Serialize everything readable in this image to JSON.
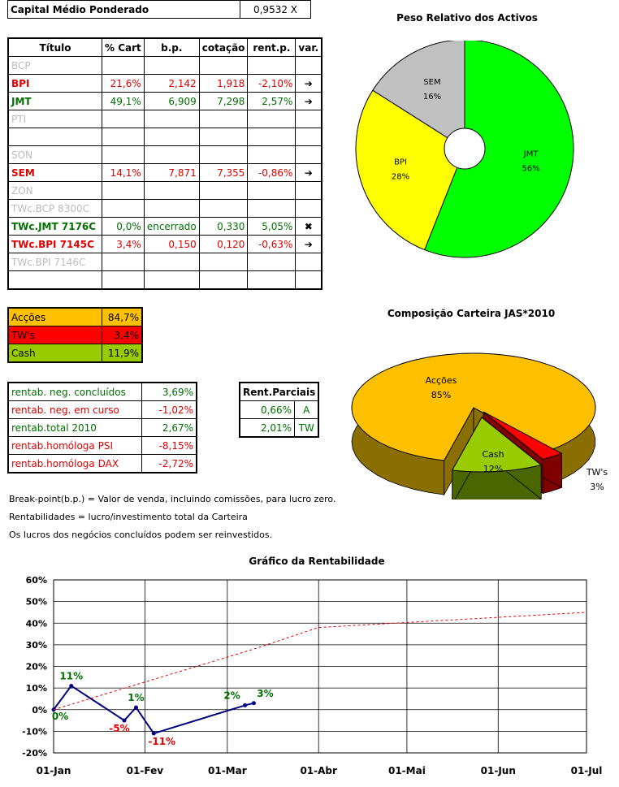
{
  "capital": {
    "label": "Capital Médio Ponderado",
    "value": "0,9532 X"
  },
  "portfolio_table": {
    "headers": [
      "Título",
      "% Cart",
      "b.p.",
      "cotação",
      "rent.p.",
      "var."
    ],
    "rows": [
      {
        "name": "BCP",
        "pct": "",
        "bp": "",
        "cot": "",
        "rent": "",
        "var": "",
        "color": "grey"
      },
      {
        "name": "BPI",
        "pct": "21,6%",
        "bp": "2,142",
        "cot": "1,918",
        "rent": "-2,10%",
        "var": "➔",
        "color": "red"
      },
      {
        "name": "JMT",
        "pct": "49,1%",
        "bp": "6,909",
        "cot": "7,298",
        "rent": "2,57%",
        "var": "➔",
        "color": "green"
      },
      {
        "name": "PTI",
        "pct": "",
        "bp": "",
        "cot": "",
        "rent": "",
        "var": "",
        "color": "grey"
      },
      {
        "name": "",
        "pct": "",
        "bp": "",
        "cot": "",
        "rent": "",
        "var": "",
        "color": "grey"
      },
      {
        "name": "SON",
        "pct": "",
        "bp": "",
        "cot": "",
        "rent": "",
        "var": "",
        "color": "grey"
      },
      {
        "name": "SEM",
        "pct": "14,1%",
        "bp": "7,871",
        "cot": "7,355",
        "rent": "-0,86%",
        "var": "➔",
        "color": "red"
      },
      {
        "name": "ZON",
        "pct": "",
        "bp": "",
        "cot": "",
        "rent": "",
        "var": "",
        "color": "grey"
      },
      {
        "name": "TWc.BCP 8300C",
        "pct": "",
        "bp": "",
        "cot": "",
        "rent": "",
        "var": "",
        "color": "grey"
      },
      {
        "name": "TWc.JMT 7176C",
        "pct": "0,0%",
        "bp": "encerrado",
        "cot": "0,330",
        "rent": "5,05%",
        "var": "✖",
        "color": "green"
      },
      {
        "name": "TWc.BPI 7145C",
        "pct": "3,4%",
        "bp": "0,150",
        "cot": "0,120",
        "rent": "-0,63%",
        "var": "➔",
        "color": "red"
      },
      {
        "name": "TWc.BPI 7146C",
        "pct": "",
        "bp": "",
        "cot": "",
        "rent": "",
        "var": "",
        "color": "grey"
      },
      {
        "name": "",
        "pct": "",
        "bp": "",
        "cot": "",
        "rent": "",
        "var": "",
        "color": "grey"
      }
    ]
  },
  "composition": [
    {
      "label": "Acções",
      "value": "84,7%",
      "bg": "#ffc000"
    },
    {
      "label": "TW's",
      "value": "3,4%",
      "bg": "#ff0000"
    },
    {
      "label": "Cash",
      "value": "11,9%",
      "bg": "#99cc00"
    }
  ],
  "returns": [
    {
      "label": "rentab. neg. concluídos",
      "value": "3,69%",
      "color": "green"
    },
    {
      "label": "rentab. neg. em curso",
      "value": "-1,02%",
      "color": "red"
    },
    {
      "label": "rentab.total 2010",
      "value": "2,67%",
      "color": "green"
    },
    {
      "label": "rentab.homóloga PSI",
      "value": "-8,15%",
      "color": "red"
    },
    {
      "label": "rentab.homóloga DAX",
      "value": "-2,72%",
      "color": "red"
    }
  ],
  "partial": {
    "header": "Rent.Parciais",
    "rows": [
      {
        "value": "0,66%",
        "tag": "A"
      },
      {
        "value": "2,01%",
        "tag": "TW"
      }
    ]
  },
  "notes": [
    "Break-point(b.p.) = Valor de venda, incluindo comissões, para lucro zero.",
    "Rentabilidades = lucro/investimento total da Carteira",
    "Os lucros dos negócios concluídos podem ser reinvestidos."
  ],
  "chart_data": [
    {
      "type": "pie",
      "title": "Peso Relativo dos Activos",
      "categories": [
        "JMT",
        "BPI",
        "SEM"
      ],
      "values": [
        56,
        28,
        16
      ],
      "labels": [
        "56%",
        "28%",
        "16%"
      ],
      "colors": [
        "#00ff00",
        "#ffff00",
        "#c0c0c0"
      ],
      "donut": true
    },
    {
      "type": "pie",
      "title": "Composição Carteira JAS*2010",
      "categories": [
        "Acções",
        "TW's",
        "Cash"
      ],
      "values": [
        85,
        3,
        12
      ],
      "labels": [
        "85%",
        "3%",
        "12%"
      ],
      "colors": [
        "#ffc000",
        "#ff0000",
        "#99cc00"
      ],
      "three_d": true
    },
    {
      "type": "line",
      "title": "Gráfico da Rentabilidade",
      "x_ticks": [
        "01-Jan",
        "01-Fev",
        "01-Mar",
        "01-Abr",
        "01-Mai",
        "01-Jun",
        "01-Jul"
      ],
      "y_ticks": [
        "-20%",
        "-10%",
        "0%",
        "10%",
        "20%",
        "30%",
        "40%",
        "50%",
        "60%"
      ],
      "ylim": [
        -20,
        60
      ],
      "grid": true,
      "series": [
        {
          "style": "solid",
          "color": "#000080",
          "x": [
            "2010-01-01",
            "2010-01-07",
            "2010-01-25",
            "2010-01-29",
            "2010-02-04",
            "2010-03-07",
            "2010-03-10"
          ],
          "y": [
            0,
            11,
            -5,
            1,
            -11,
            2,
            3
          ],
          "point_labels": [
            "0%",
            "11%",
            "-5%",
            "1%",
            "-11%",
            "2%",
            "3%"
          ],
          "label_colors": [
            "green",
            "green",
            "red",
            "green",
            "red",
            "green",
            "green"
          ]
        },
        {
          "style": "dotted",
          "color": "#e00000",
          "x": [
            "2010-01-01",
            "2010-03-10",
            "2010-04-01",
            "2010-07-01"
          ],
          "y": [
            0,
            28,
            38,
            45
          ]
        }
      ]
    }
  ]
}
